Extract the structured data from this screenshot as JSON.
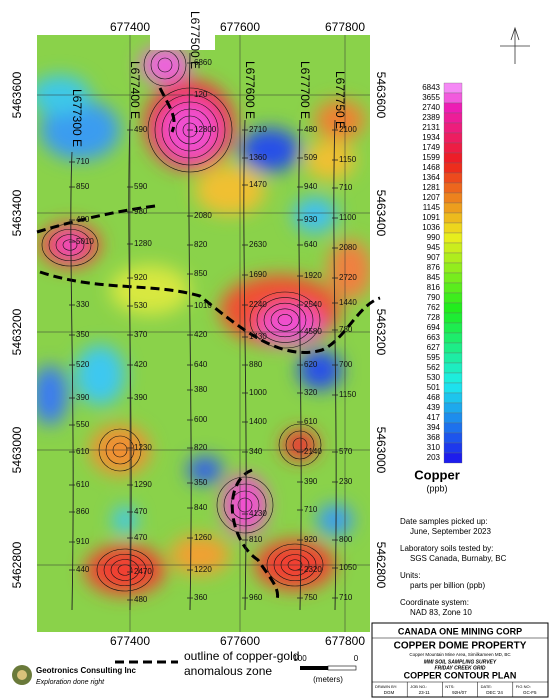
{
  "map": {
    "eastings_top": [
      "677400",
      "677600",
      "677800"
    ],
    "eastings_bottom": [
      "677400",
      "677600",
      "677800"
    ],
    "northings_left": [
      "5463600",
      "5463400",
      "5463200",
      "5463000",
      "5462800"
    ],
    "northings_right": [
      "5463600",
      "5463400",
      "5463200",
      "5463000",
      "5462800"
    ],
    "lines": [
      {
        "label": "L677300 E",
        "samples": [
          710,
          850,
          480,
          5010,
          330,
          350,
          520,
          390,
          550,
          610,
          610,
          860,
          910,
          440
        ]
      },
      {
        "label": "L677400 E",
        "samples": [
          490,
          590,
          980,
          1280,
          920,
          530,
          370,
          420,
          390,
          1230,
          1290,
          470,
          470,
          2470,
          480
        ]
      },
      {
        "label": "L677500 E",
        "samples": [
          6860,
          120,
          12800,
          2080,
          820,
          850,
          1010,
          420,
          640,
          380,
          600,
          820,
          350,
          840,
          1260,
          1220,
          360
        ]
      },
      {
        "label": "L677600 E",
        "samples": [
          2710,
          1360,
          1470,
          2630,
          1690,
          2240,
          1430,
          880,
          1000,
          1400,
          340,
          4130,
          810,
          960
        ]
      },
      {
        "label": "L677700 E",
        "samples": [
          480,
          509,
          940,
          930,
          640,
          1920,
          2540,
          4580,
          620,
          320,
          610,
          2140,
          390,
          710,
          920,
          2320,
          750
        ]
      },
      {
        "label": "L677750 E",
        "samples": [
          2100,
          1150,
          710,
          1100,
          2080,
          2720,
          1440,
          780,
          700,
          1150,
          570,
          230,
          800,
          1050,
          710
        ]
      }
    ]
  },
  "legend": {
    "title": "Copper",
    "unit": "(ppb)",
    "levels": [
      6843,
      3655,
      2740,
      2389,
      2131,
      1934,
      1749,
      1599,
      1468,
      1364,
      1281,
      1207,
      1145,
      1091,
      1036,
      990,
      945,
      907,
      876,
      845,
      816,
      790,
      762,
      728,
      694,
      663,
      627,
      595,
      562,
      530,
      501,
      468,
      439,
      417,
      394,
      368,
      310,
      203
    ]
  },
  "notes": [
    {
      "label": "Date samples picked up:",
      "value": "June, September 2023"
    },
    {
      "label": "Laboratory soils tested by:",
      "value": "SGS Canada, Burnaby, BC"
    },
    {
      "label": "Units:",
      "value": "parts per billion (ppb)"
    },
    {
      "label": "Coordinate system:",
      "value": "NAD 83, Zone 10"
    }
  ],
  "anomaly_legend": [
    "outline of copper-gold",
    "anomalous zone"
  ],
  "scale_bar": {
    "left": "100",
    "right": "0",
    "unit": "(meters)"
  },
  "company": {
    "name": "Geotronics Consulting Inc",
    "tagline": "Exploration done right"
  },
  "title_block": {
    "client": "CANADA ONE MINING CORP",
    "property": "COPPER DOME PROPERTY",
    "area": "Copper Mountain Mine Area, Similkameen MD, BC",
    "survey": "MMI SOIL SAMPLING SURVEY",
    "grid": "FRIDAY CREEK GRID",
    "plan": "COPPER CONTOUR PLAN",
    "fields": [
      {
        "label": "DRAWN BY:",
        "value": "DGM"
      },
      {
        "label": "JOB NO.:",
        "value": "23-11"
      },
      {
        "label": "NTS:",
        "value": "92H/07"
      },
      {
        "label": "DATE:",
        "value": "DEC '24"
      },
      {
        "label": "FIG NO:",
        "value": "GC-F5"
      }
    ]
  }
}
